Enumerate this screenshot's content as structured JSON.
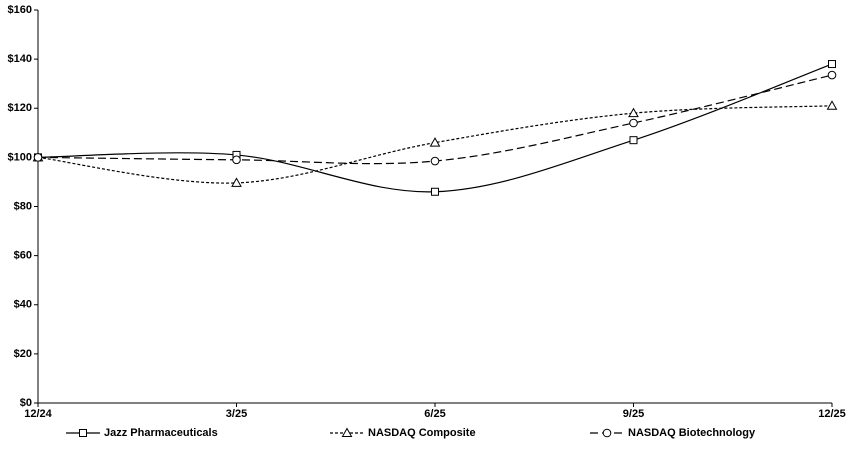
{
  "chart_data": {
    "type": "line",
    "categories": [
      "12/24",
      "3/25",
      "6/25",
      "9/25",
      "12/25"
    ],
    "series": [
      {
        "name": "Jazz Pharmaceuticals",
        "color": "#000000",
        "marker": "square",
        "dash": "solid",
        "values": [
          100,
          101,
          86,
          107,
          138
        ]
      },
      {
        "name": "NASDAQ Composite",
        "color": "#000000",
        "marker": "triangle",
        "dash": "dotted",
        "values": [
          100,
          89.6,
          106,
          118,
          121
        ]
      },
      {
        "name": "NASDAQ Biotechnology",
        "color": "#000000",
        "marker": "circle",
        "dash": "dashed",
        "values": [
          100,
          99,
          98.5,
          114,
          133.5
        ]
      }
    ],
    "ylim": [
      0,
      160
    ],
    "yticks": [
      {
        "value": 0,
        "label": "$0"
      },
      {
        "value": 20,
        "label": "$20"
      },
      {
        "value": 40,
        "label": "$40"
      },
      {
        "value": 60,
        "label": "$60"
      },
      {
        "value": 80,
        "label": "$80"
      },
      {
        "value": 100,
        "label": "$100"
      },
      {
        "value": 120,
        "label": "$120"
      },
      {
        "value": 140,
        "label": "$140"
      },
      {
        "value": 160,
        "label": "$160"
      }
    ],
    "grid": false,
    "smooth": true,
    "legend": "bottom"
  }
}
